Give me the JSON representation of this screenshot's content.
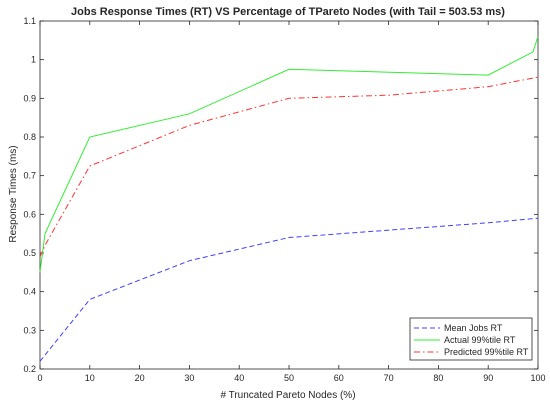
{
  "chart_data": {
    "type": "line",
    "title": "Jobs Response Times (RT) VS Percentage of TPareto Nodes (with Tail = 503.53 ms)",
    "xlabel": "# Truncated Pareto Nodes (%)",
    "ylabel": "Response Times (ms)",
    "xlim": [
      0,
      100
    ],
    "ylim": [
      0.2,
      1.1
    ],
    "xticks": [
      0,
      10,
      20,
      30,
      40,
      50,
      60,
      70,
      80,
      90,
      100
    ],
    "yticks": [
      0.2,
      0.3,
      0.4,
      0.5,
      0.6,
      0.7,
      0.8,
      0.9,
      1,
      1.1
    ],
    "grid": false,
    "legend_position": "bottom-right",
    "series": [
      {
        "name": "Mean Jobs RT",
        "color": "#4040ff",
        "dash": "dashed",
        "x": [
          0,
          10,
          30,
          50,
          90,
          100
        ],
        "y": [
          0.22,
          0.38,
          0.48,
          0.54,
          0.578,
          0.59
        ]
      },
      {
        "name": "Actual 99%tile RT",
        "color": "#33ee33",
        "dash": "solid",
        "x": [
          0,
          1,
          10,
          30,
          50,
          90,
          99,
          100
        ],
        "y": [
          0.45,
          0.55,
          0.8,
          0.86,
          0.975,
          0.96,
          1.02,
          1.06
        ]
      },
      {
        "name": "Predicted 99%tile RT",
        "color": "#ff3333",
        "dash": "dashdot",
        "x": [
          0,
          1,
          10,
          30,
          50,
          70,
          90,
          100
        ],
        "y": [
          0.49,
          0.52,
          0.725,
          0.83,
          0.9,
          0.908,
          0.93,
          0.955
        ]
      }
    ]
  }
}
